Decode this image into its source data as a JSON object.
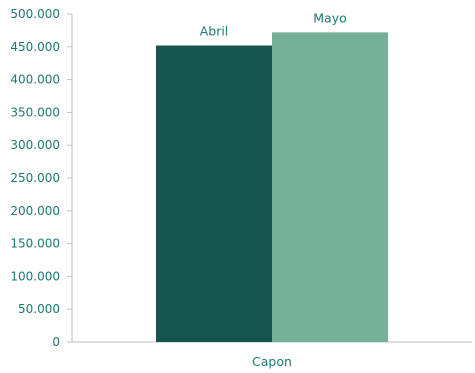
{
  "chart_data": {
    "type": "bar",
    "categories": [
      "Capon"
    ],
    "series": [
      {
        "name": "Abril",
        "values": [
          452000
        ],
        "color": "#16554f"
      },
      {
        "name": "Mayo",
        "values": [
          472000
        ],
        "color": "#74b196"
      }
    ],
    "y_ticks": [
      "0",
      "50.000",
      "100.000",
      "150.000",
      "200.000",
      "250.000",
      "300.000",
      "350.000",
      "400.000",
      "450.000",
      "500.000"
    ],
    "ylim": [
      0,
      500000
    ],
    "grid": false,
    "legend": "none",
    "data_labels": "series-name-above-bar",
    "title": "",
    "xlabel": "",
    "ylabel": ""
  },
  "colors": {
    "text": "#1a7a74",
    "axis": "#bfbfbf"
  }
}
